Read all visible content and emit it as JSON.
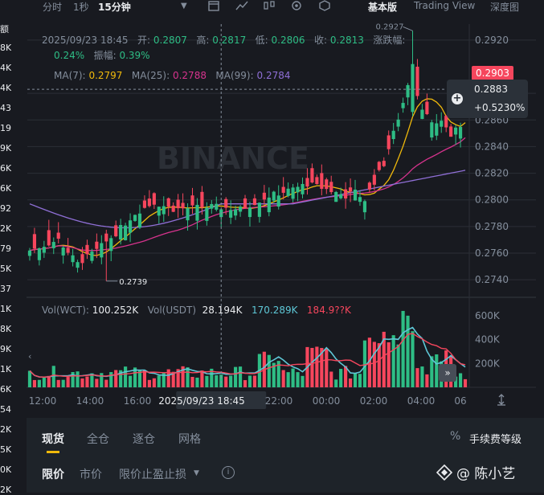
{
  "left_strip": [
    "额",
    "8K",
    "4K",
    "4K",
    "43",
    "19",
    "9K",
    "6K",
    "6K",
    "92",
    "2K",
    "79",
    "5K",
    "37",
    "1K",
    "8K",
    "9K",
    "1K",
    "6K",
    "54",
    "2K",
    "5K",
    "0K",
    "2K"
  ],
  "toolbar": {
    "time_label": "分时",
    "interval_1s": "1秒",
    "interval_15m": "15分钟",
    "view_basic": "基本版",
    "view_tradingview": "Trading View",
    "view_depth": "深度图"
  },
  "ohlc": {
    "datetime": "2025/09/23 18:45",
    "open_label": "开:",
    "open": "0.2807",
    "high_label": "高:",
    "high": "0.2817",
    "low_label": "低:",
    "low": "0.2806",
    "close_label": "收:",
    "close": "0.2813",
    "change_label": "涨跌幅:",
    "change": "0.24%",
    "amplitude_label": "振幅:",
    "amplitude": "0.39%"
  },
  "ma": {
    "ma7_label": "MA(7):",
    "ma7": "0.2797",
    "ma25_label": "MA(25):",
    "ma25": "0.2788",
    "ma99_label": "MA(99):",
    "ma99": "0.2784"
  },
  "volume_legend": {
    "vol_wct_label": "Vol(WCT):",
    "vol_wct": "100.252K",
    "vol_usdt_label": "Vol(USDT)",
    "vol_usdt": "28.194K",
    "vol_ma1": "170.289K",
    "vol_ma2": "184.9??K"
  },
  "price_axis": [
    "0.2920",
    "0.2880",
    "0.2860",
    "0.2840",
    "0.2820",
    "0.2800",
    "0.2780",
    "0.2760",
    "0.2740"
  ],
  "current_price": "0.2903",
  "crosshair": {
    "price": "0.2883",
    "change": "+0.5230%"
  },
  "marks": {
    "high": "0.2927",
    "low": "0.2739"
  },
  "volume_axis": [
    "600K",
    "400K",
    "200K"
  ],
  "time_axis": [
    "12:00",
    "14:00",
    "16:00",
    "2025/09/23 18:45",
    "22:00",
    "00:00",
    "02:00",
    "04:00",
    "06"
  ],
  "watermark": "BINANCE",
  "panel": {
    "tabs": [
      "现货",
      "全仓",
      "逐仓",
      "网格"
    ],
    "fee_label": "手续费等级",
    "order_types": [
      "限价",
      "市价",
      "限价止盈止损"
    ],
    "user_watermark": "@ 陈小艺"
  },
  "colors": {
    "up": "#2ebd85",
    "down": "#f6465d",
    "ma7": "#f0b90b",
    "ma25": "#d6338d",
    "ma99": "#8f6fd6"
  },
  "chart_data": {
    "type": "candlestick",
    "symbol": "WCT/USDT",
    "interval": "15分钟",
    "ylim": [
      0.2728,
      0.2932
    ],
    "note_values_estimated": true
  }
}
